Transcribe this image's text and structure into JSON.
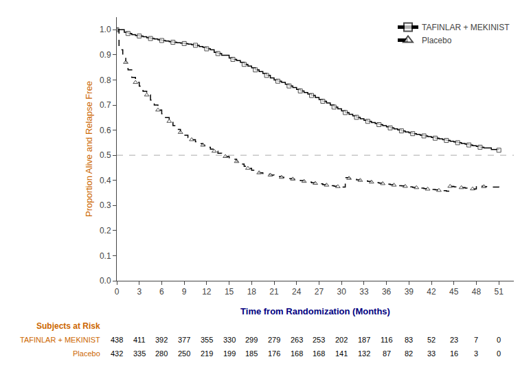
{
  "chart_data": {
    "type": "line",
    "title": "",
    "ylabel": "Proportion Alive and Relapse Free",
    "ylabel_color": "#cc6600",
    "xlabel": "Time from Randomization (Months)",
    "xlabel_color": "#000080",
    "xlim": [
      0,
      53
    ],
    "ylim": [
      0.0,
      1.05
    ],
    "xticks": [
      0,
      3,
      6,
      9,
      12,
      15,
      18,
      21,
      24,
      27,
      30,
      33,
      36,
      39,
      42,
      45,
      48,
      51
    ],
    "yticks": [
      {
        "value": 0.0,
        "label": "0.0"
      },
      0.1,
      0.2,
      0.3,
      0.4,
      0.5,
      0.6,
      0.7,
      0.8,
      0.9,
      {
        "value": 1.0,
        "label": "1.0"
      }
    ],
    "grid": false,
    "legend": "upper right",
    "hline": {
      "y": 0.5,
      "color": "#aaaaaa",
      "line_style": "dashed"
    },
    "series": [
      {
        "name": "TAFINLAR + MEKINIST",
        "color": "#000000",
        "marker": "square",
        "line_style": "solid",
        "x": [
          0,
          0.5,
          1.0,
          1.5,
          2.0,
          2.5,
          3.0,
          3.5,
          4.0,
          4.5,
          5.0,
          5.5,
          6.0,
          6.5,
          7.0,
          7.5,
          8.0,
          8.5,
          9.0,
          9.5,
          10.0,
          10.5,
          11.0,
          11.5,
          12.0,
          12.5,
          13.0,
          13.5,
          14.0,
          15.0,
          15.5,
          16.0,
          16.5,
          17.0,
          17.5,
          18.0,
          18.5,
          19.0,
          19.5,
          20.0,
          20.5,
          21.0,
          21.5,
          22.0,
          22.5,
          23.0,
          23.5,
          24.0,
          24.5,
          25.0,
          25.5,
          26.0,
          26.5,
          27.0,
          27.5,
          28.0,
          28.5,
          29.0,
          29.5,
          30.0,
          30.5,
          31.0,
          31.5,
          32.0,
          32.5,
          33.0,
          33.5,
          34.0,
          34.5,
          35.0,
          35.5,
          36.0,
          36.5,
          37.0,
          37.5,
          38.0,
          38.5,
          39.0,
          39.5,
          40.0,
          40.5,
          41.0,
          41.5,
          42.0,
          42.5,
          43.0,
          43.5,
          44.0,
          44.5,
          45.0,
          45.5,
          46.0,
          46.5,
          47.0,
          47.5,
          48.0,
          48.5,
          49.0,
          50.0,
          51.0
        ],
        "values": [
          1.0,
          1.0,
          0.99,
          0.985,
          0.98,
          0.977,
          0.975,
          0.972,
          0.968,
          0.965,
          0.963,
          0.96,
          0.957,
          0.955,
          0.952,
          0.95,
          0.948,
          0.947,
          0.945,
          0.943,
          0.94,
          0.938,
          0.933,
          0.93,
          0.924,
          0.92,
          0.91,
          0.905,
          0.898,
          0.887,
          0.882,
          0.877,
          0.87,
          0.862,
          0.855,
          0.848,
          0.84,
          0.833,
          0.826,
          0.818,
          0.808,
          0.8,
          0.795,
          0.79,
          0.783,
          0.776,
          0.77,
          0.762,
          0.756,
          0.75,
          0.744,
          0.738,
          0.73,
          0.722,
          0.715,
          0.708,
          0.7,
          0.692,
          0.685,
          0.677,
          0.67,
          0.663,
          0.657,
          0.651,
          0.645,
          0.639,
          0.635,
          0.63,
          0.626,
          0.622,
          0.618,
          0.613,
          0.609,
          0.605,
          0.601,
          0.597,
          0.593,
          0.589,
          0.586,
          0.583,
          0.58,
          0.577,
          0.574,
          0.571,
          0.568,
          0.565,
          0.562,
          0.559,
          0.556,
          0.553,
          0.55,
          0.547,
          0.544,
          0.541,
          0.538,
          0.535,
          0.532,
          0.529,
          0.523,
          0.52
        ]
      },
      {
        "name": "Placebo",
        "color": "#000000",
        "marker": "triangle",
        "line_style": "dashed",
        "x": [
          0,
          0.3,
          0.8,
          1.2,
          1.5,
          2.0,
          2.5,
          3.0,
          3.5,
          4.0,
          4.5,
          5.0,
          5.5,
          6.0,
          6.5,
          7.0,
          7.5,
          8.0,
          8.5,
          9.0,
          9.5,
          10.0,
          10.5,
          11.0,
          11.5,
          12.0,
          12.5,
          13.0,
          13.5,
          14.0,
          14.5,
          15.0,
          15.5,
          16.0,
          16.5,
          17.0,
          17.5,
          18.0,
          18.5,
          19.0,
          19.5,
          20.0,
          20.5,
          21.0,
          21.5,
          22.0,
          22.5,
          23.0,
          23.5,
          24.0,
          24.5,
          25.0,
          25.5,
          26.0,
          26.5,
          27.0,
          27.5,
          28.0,
          28.5,
          29.0,
          29.5,
          30.0,
          30.5,
          31.0,
          31.5,
          32.0,
          32.5,
          33.0,
          33.5,
          34.0,
          34.5,
          35.0,
          35.5,
          36.0,
          36.5,
          37.0,
          37.5,
          38.0,
          38.5,
          39.0,
          39.5,
          40.0,
          40.5,
          41.0,
          41.5,
          42.0,
          42.5,
          43.0,
          43.5,
          44.0,
          44.5,
          45.0,
          45.5,
          46.0,
          46.5,
          47.0,
          47.5,
          48.0,
          48.5,
          49.0,
          50.0,
          51.0
        ],
        "values": [
          1.0,
          0.92,
          0.9,
          0.87,
          0.84,
          0.81,
          0.79,
          0.775,
          0.755,
          0.74,
          0.72,
          0.7,
          0.68,
          0.665,
          0.65,
          0.635,
          0.618,
          0.603,
          0.591,
          0.58,
          0.57,
          0.562,
          0.554,
          0.546,
          0.54,
          0.532,
          0.524,
          0.516,
          0.508,
          0.501,
          0.495,
          0.49,
          0.484,
          0.475,
          0.465,
          0.456,
          0.448,
          0.44,
          0.435,
          0.43,
          0.427,
          0.424,
          0.421,
          0.418,
          0.415,
          0.412,
          0.41,
          0.407,
          0.405,
          0.402,
          0.399,
          0.396,
          0.393,
          0.39,
          0.388,
          0.386,
          0.383,
          0.381,
          0.379,
          0.377,
          0.375,
          0.373,
          0.411,
          0.408,
          0.405,
          0.402,
          0.4,
          0.398,
          0.396,
          0.393,
          0.391,
          0.389,
          0.387,
          0.385,
          0.383,
          0.381,
          0.379,
          0.378,
          0.376,
          0.374,
          0.372,
          0.371,
          0.369,
          0.367,
          0.365,
          0.364,
          0.362,
          0.36,
          0.359,
          0.357,
          0.376,
          0.374,
          0.372,
          0.371,
          0.369,
          0.368,
          0.366,
          0.379,
          0.377,
          0.375,
          0.373,
          0.372
        ]
      }
    ],
    "risk_table": {
      "title": "Subjects at Risk",
      "color": "#cc6600",
      "rows": [
        {
          "name": "TAFINLAR + MEKINIST",
          "values": [
            438,
            411,
            392,
            377,
            355,
            330,
            299,
            279,
            263,
            253,
            202,
            187,
            116,
            83,
            52,
            23,
            7,
            0
          ]
        },
        {
          "name": "Placebo",
          "values": [
            432,
            335,
            280,
            250,
            219,
            199,
            185,
            176,
            168,
            168,
            141,
            132,
            87,
            82,
            33,
            16,
            3,
            0
          ]
        }
      ]
    }
  }
}
